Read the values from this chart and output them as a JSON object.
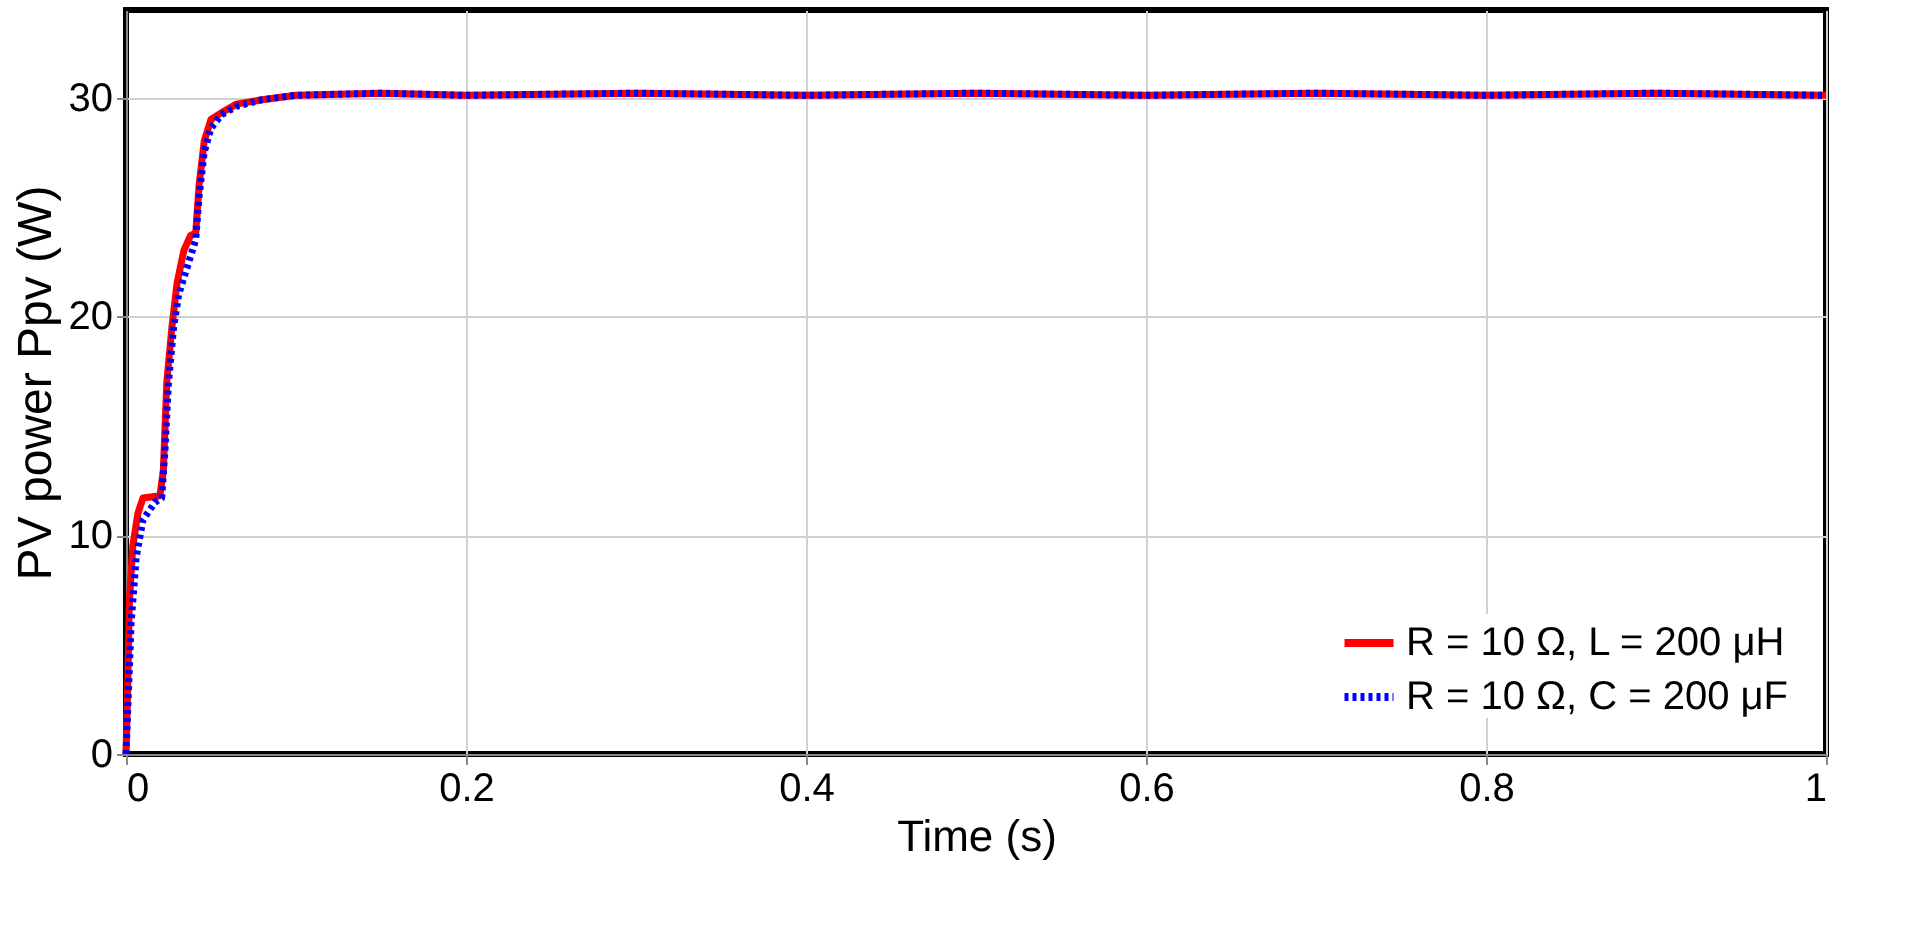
{
  "chart_data": {
    "type": "line",
    "xlabel": "Time (s)",
    "ylabel": "PV power Ppv (W)",
    "xlim": [
      0,
      1
    ],
    "xticks": [
      0,
      0.2,
      0.4,
      0.6,
      0.8,
      1
    ],
    "ylim": [
      0,
      34
    ],
    "yticks": [
      0,
      10,
      20,
      30
    ],
    "grid": true,
    "legend": "bottom right",
    "series": [
      {
        "name": "R = 10 Ω, L = 200 μH",
        "color": "#ff0000",
        "line_style": "solid",
        "x": [
          0,
          0.001,
          0.002,
          0.004,
          0.007,
          0.01,
          0.02,
          0.022,
          0.024,
          0.027,
          0.03,
          0.034,
          0.038,
          0.041,
          0.043,
          0.046,
          0.05,
          0.056,
          0.065,
          0.08,
          0.1,
          0.15,
          0.2,
          0.3,
          0.4,
          0.5,
          0.6,
          0.7,
          0.8,
          0.9,
          1
        ],
        "values": [
          0,
          3,
          7,
          9.5,
          11,
          11.7,
          11.8,
          13,
          17,
          19.5,
          21.5,
          23,
          23.7,
          23.8,
          26,
          28,
          29,
          29.3,
          29.7,
          29.9,
          30.1,
          30.2,
          30.1,
          30.2,
          30.1,
          30.2,
          30.1,
          30.2,
          30.1,
          30.2,
          30.1
        ]
      },
      {
        "name": "R = 10 Ω, C = 200 μF",
        "color": "#0000ff",
        "line_style": "dotted",
        "x": [
          0,
          0.001,
          0.003,
          0.006,
          0.01,
          0.017,
          0.021,
          0.023,
          0.025,
          0.028,
          0.031,
          0.035,
          0.039,
          0.041,
          0.043,
          0.046,
          0.05,
          0.056,
          0.065,
          0.08,
          0.1,
          0.15,
          0.2,
          0.3,
          0.4,
          0.5,
          0.6,
          0.7,
          0.8,
          0.9,
          1
        ],
        "values": [
          0,
          2,
          6,
          9,
          10.7,
          11.5,
          11.7,
          14,
          17,
          19.5,
          21,
          22,
          23,
          23.5,
          25.5,
          27.5,
          28.6,
          29.2,
          29.6,
          29.9,
          30.1,
          30.2,
          30.1,
          30.2,
          30.1,
          30.2,
          30.1,
          30.2,
          30.1,
          30.2,
          30.1
        ]
      }
    ]
  }
}
